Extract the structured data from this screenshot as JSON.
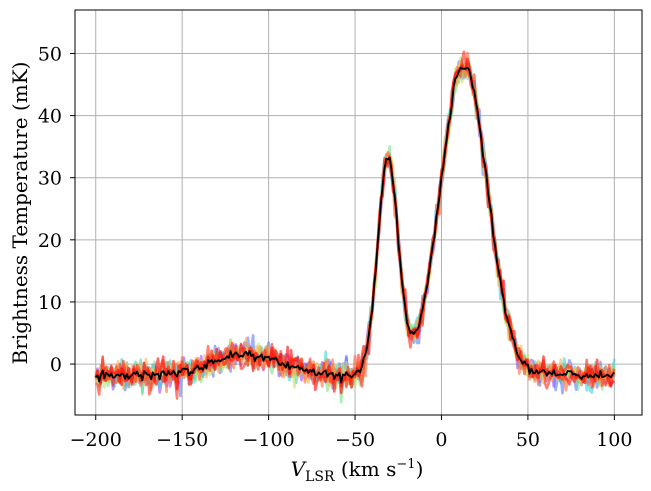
{
  "chart_data": {
    "type": "line",
    "xlabel": "V_LSR (km s^-1)",
    "xlabel_main": "V",
    "xlabel_sub": "LSR",
    "xlabel_rest": " (km s",
    "xlabel_sup": "−1",
    "xlabel_close": ")",
    "ylabel": "Brightness Temperature (mK)",
    "xlim": [
      -212,
      116
    ],
    "ylim": [
      -8.2,
      57
    ],
    "xticks": [
      -200,
      -150,
      -100,
      -50,
      0,
      50,
      100
    ],
    "xtick_labels": [
      "−200",
      "−150",
      "−100",
      "−50",
      "0",
      "50",
      "100"
    ],
    "yticks": [
      0,
      10,
      20,
      30,
      40,
      50
    ],
    "ytick_labels": [
      "0",
      "10",
      "20",
      "30",
      "40",
      "50"
    ],
    "grid": true,
    "x_start": -200,
    "x_end": 100,
    "x_step": 1,
    "components": [
      {
        "amplitude": 3.5,
        "center": -113,
        "fwhm": 45
      },
      {
        "amplitude": 34.5,
        "center": -31,
        "fwhm": 14
      },
      {
        "amplitude": 50,
        "center": 13,
        "fwhm": 32
      }
    ],
    "baseline": -1.8,
    "noise_rms": 1.1,
    "series": [
      {
        "color": "#9b4dff",
        "role": "noisy realization"
      },
      {
        "color": "#5b7cff",
        "role": "noisy realization"
      },
      {
        "color": "#33d6e6",
        "role": "noisy realization"
      },
      {
        "color": "#7fe08a",
        "role": "noisy realization"
      },
      {
        "color": "#c8e05a",
        "role": "noisy realization"
      },
      {
        "color": "#ffb347",
        "role": "noisy realization"
      },
      {
        "color": "#ff6a3d",
        "role": "noisy realization"
      },
      {
        "color": "#ff2a14",
        "role": "noisy realization"
      },
      {
        "color": "#ff0000",
        "role": "noisy realization"
      },
      {
        "color": "#000000",
        "role": "mean"
      }
    ]
  }
}
